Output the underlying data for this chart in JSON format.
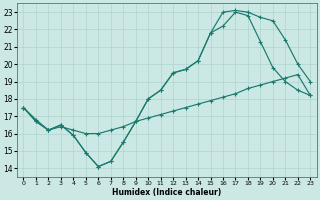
{
  "xlabel": "Humidex (Indice chaleur)",
  "xlim": [
    -0.5,
    23.5
  ],
  "ylim": [
    13.5,
    23.5
  ],
  "xticks": [
    0,
    1,
    2,
    3,
    4,
    5,
    6,
    7,
    8,
    9,
    10,
    11,
    12,
    13,
    14,
    15,
    16,
    17,
    18,
    19,
    20,
    21,
    22,
    23
  ],
  "yticks": [
    14,
    15,
    16,
    17,
    18,
    19,
    20,
    21,
    22,
    23
  ],
  "background_color": "#cce8e5",
  "grid_color": "#aed4d0",
  "line_color": "#1a7a6e",
  "line1_x": [
    0,
    1,
    2,
    3,
    4,
    5,
    6,
    7,
    8,
    9,
    10,
    11,
    12,
    13,
    14,
    15,
    16,
    17,
    18,
    19,
    20,
    21,
    22,
    23
  ],
  "line1_y": [
    17.5,
    16.7,
    16.2,
    16.5,
    15.9,
    14.9,
    14.1,
    14.4,
    15.5,
    16.7,
    18.0,
    18.5,
    19.5,
    19.7,
    20.2,
    21.8,
    23.0,
    23.1,
    23.0,
    22.7,
    22.5,
    21.4,
    20.0,
    19.0
  ],
  "line2_x": [
    0,
    1,
    2,
    3,
    4,
    5,
    6,
    7,
    8,
    9,
    10,
    11,
    12,
    13,
    14,
    15,
    16,
    17,
    18,
    19,
    20,
    21,
    22,
    23
  ],
  "line2_y": [
    17.5,
    16.7,
    16.2,
    16.5,
    15.9,
    14.9,
    14.1,
    14.4,
    15.5,
    16.7,
    18.0,
    18.5,
    19.5,
    19.7,
    20.2,
    21.8,
    22.2,
    23.0,
    22.8,
    21.3,
    19.8,
    19.0,
    18.5,
    18.2
  ],
  "line3_x": [
    0,
    1,
    2,
    3,
    4,
    5,
    6,
    7,
    8,
    9,
    10,
    11,
    12,
    13,
    14,
    15,
    16,
    17,
    18,
    19,
    20,
    21,
    22,
    23
  ],
  "line3_y": [
    17.5,
    16.8,
    16.2,
    16.4,
    16.2,
    16.0,
    16.0,
    16.2,
    16.4,
    16.7,
    16.9,
    17.1,
    17.3,
    17.5,
    17.7,
    17.9,
    18.1,
    18.3,
    18.6,
    18.8,
    19.0,
    19.2,
    19.4,
    18.2
  ]
}
